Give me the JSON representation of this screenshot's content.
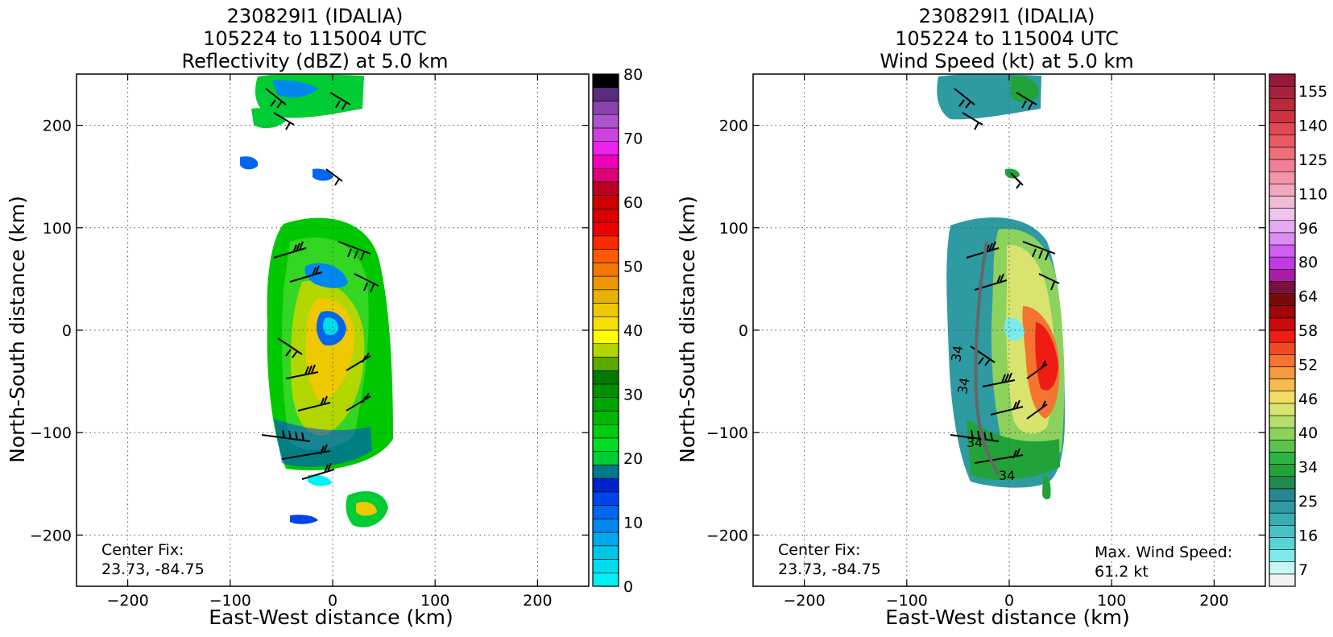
{
  "chart_data": [
    {
      "type": "heatmap",
      "title_lines": [
        "230829I1 (IDALIA)",
        "105224 to 115004 UTC",
        "Reflectivity (dBZ) at 5.0 km"
      ],
      "xlabel": "East-West distance (km)",
      "ylabel": "North-South distance (km)",
      "xlim": [
        -250,
        250
      ],
      "ylim": [
        -250,
        250
      ],
      "xticks": [
        -200,
        -100,
        0,
        100,
        200
      ],
      "yticks": [
        -200,
        -100,
        0,
        100,
        200
      ],
      "grid": true,
      "annotations": [
        "Center Fix:",
        "23.73, -84.75"
      ],
      "colorbar": {
        "min": 0,
        "max": 80,
        "step": 2.5,
        "tick_labels": [
          "0",
          "10",
          "20",
          "30",
          "40",
          "50",
          "60",
          "70",
          "80"
        ],
        "tick_values": [
          0,
          10,
          20,
          30,
          40,
          50,
          60,
          70,
          80
        ],
        "colors": [
          "#00f2f2",
          "#00dcec",
          "#00c6e6",
          "#00aaee",
          "#0088ee",
          "#0066ee",
          "#0044ee",
          "#0022cc",
          "#007a8a",
          "#00cc33",
          "#00dd22",
          "#00cc11",
          "#00b800",
          "#00a400",
          "#009000",
          "#007a00",
          "#5caa00",
          "#b2d600",
          "#ffff00",
          "#f5e000",
          "#eec800",
          "#e8b000",
          "#ee9600",
          "#f27800",
          "#ff5a00",
          "#ff2a00",
          "#ee0000",
          "#dd0000",
          "#cc0000",
          "#bb0022",
          "#dd0077",
          "#ee00bb",
          "#ee22ee",
          "#cc44dd",
          "#aa55cc",
          "#8844aa",
          "#5a2d7a",
          "#000000"
        ]
      }
    },
    {
      "type": "heatmap",
      "title_lines": [
        "230829I1 (IDALIA)",
        "105224 to 115004 UTC",
        "Wind Speed (kt) at 5.0 km"
      ],
      "xlabel": "East-West distance (km)",
      "ylabel": "North-South distance (km)",
      "xlim": [
        -250,
        250
      ],
      "ylim": [
        -250,
        250
      ],
      "xticks": [
        -200,
        -100,
        0,
        100,
        200
      ],
      "yticks": [
        -200,
        -100,
        0,
        100,
        200
      ],
      "grid": true,
      "annotations": [
        "Center Fix:",
        "23.73, -84.75",
        "Max. Wind Speed:",
        "61.2 kt"
      ],
      "max_wind_speed_kt": 61.2,
      "contour_labels": [
        "34",
        "34",
        "34",
        "34"
      ],
      "colorbar": {
        "tick_labels": [
          "7",
          "16",
          "25",
          "34",
          "40",
          "46",
          "52",
          "58",
          "64",
          "80",
          "96",
          "110",
          "125",
          "140",
          "155"
        ],
        "colors": [
          "#f2f2f2",
          "#c8f6f6",
          "#7ceaea",
          "#55d6d6",
          "#44c2c6",
          "#36aeb4",
          "#2e9aa2",
          "#268890",
          "#1f8a4a",
          "#22a33a",
          "#2eb442",
          "#5cc44c",
          "#8ed25e",
          "#b6de6c",
          "#d8e46e",
          "#f2dc62",
          "#f6bc4e",
          "#f69a3e",
          "#f47430",
          "#f04a24",
          "#ee1c12",
          "#cc0a0a",
          "#a00808",
          "#7a0a0a",
          "#7a1040",
          "#aa1ca6",
          "#c23ae6",
          "#d05ef0",
          "#dc8cf2",
          "#e6aaf2",
          "#eec4ec",
          "#f2bcd6",
          "#f4a8c0",
          "#f494a8",
          "#f28094",
          "#f06e7a",
          "#ea5a64",
          "#e04852",
          "#cc3444",
          "#b82a3c",
          "#a82240",
          "#96183a"
        ]
      }
    }
  ]
}
